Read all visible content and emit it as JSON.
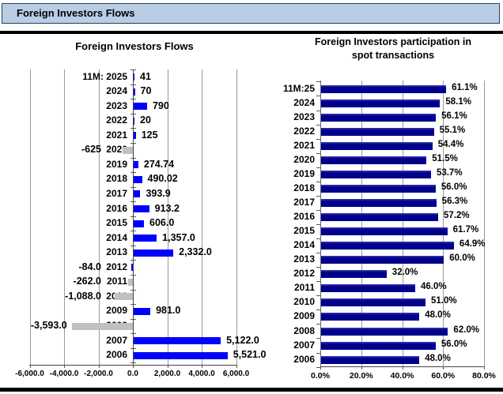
{
  "page": {
    "header_title": "Foreign Investors Flows"
  },
  "colors": {
    "header_bg": "#B9CDE5",
    "header_border": "#243F60",
    "flows_positive_bar": "#0000FF",
    "flows_negative_bar": "#C0C0C0",
    "participation_bar": "#00008B",
    "gridline": "#9A9A9A",
    "axis": "#444444"
  },
  "chart_data": [
    {
      "type": "bar",
      "orientation": "horizontal",
      "title": "Foreign Investors Flows",
      "categories": [
        "11M: 2025",
        "2024",
        "2023",
        "2022",
        "2021",
        "2020",
        "2019",
        "2018",
        "2017",
        "2016",
        "2015",
        "2014",
        "2013",
        "2012",
        "2011",
        "2010",
        "2009",
        "2008",
        "2007",
        "2006"
      ],
      "values": [
        41,
        70,
        790,
        20,
        125,
        -625,
        274.74,
        490.02,
        393.9,
        913.2,
        606.0,
        1357.0,
        2332.0,
        -84.0,
        -262.0,
        -1088.0,
        981.0,
        -3593.0,
        5122.0,
        5521.0
      ],
      "value_labels": [
        "41",
        "70",
        "790",
        "20",
        "125",
        "-625",
        "274.74",
        "490.02",
        "393.9",
        "913.2",
        "606.0",
        "1,357.0",
        "2,332.0",
        "-84.0",
        "-262.0",
        "-1,088.0",
        "981.0",
        "-3,593.0",
        "5,122.0",
        "5,521.0"
      ],
      "xlim": [
        -6000,
        6000
      ],
      "x_ticks": [
        "-6,000.0",
        "-4,000.0",
        "-2,000.0",
        "0.0",
        "2,000.0",
        "4,000.0",
        "6,000.0"
      ],
      "grid": true,
      "legend": "none",
      "positive_color": "#0000FF",
      "negative_color": "#C0C0C0",
      "color_overrides": {
        "2012": "#0000FF"
      }
    },
    {
      "type": "bar",
      "orientation": "horizontal",
      "title": "Foreign Investors participation in spot transactions",
      "title_lines": [
        "Foreign Investors participation in",
        "spot transactions"
      ],
      "categories": [
        "11M:25",
        "2024",
        "2023",
        "2022",
        "2021",
        "2020",
        "2019",
        "2018",
        "2017",
        "2016",
        "2015",
        "2014",
        "2013",
        "2012",
        "2011",
        "2010",
        "2009",
        "2008",
        "2007",
        "2006"
      ],
      "values": [
        61.1,
        58.1,
        56.1,
        55.1,
        54.4,
        51.5,
        53.7,
        56.0,
        56.3,
        57.2,
        61.7,
        64.9,
        60.0,
        32.0,
        46.0,
        51.0,
        48.0,
        62.0,
        56.0,
        48.0
      ],
      "value_labels": [
        "61.1%",
        "58.1%",
        "56.1%",
        "55.1%",
        "54.4%",
        "51.5%",
        "53.7%",
        "56.0%",
        "56.3%",
        "57.2%",
        "61.7%",
        "64.9%",
        "60.0%",
        "32.0%",
        "46.0%",
        "51.0%",
        "48.0%",
        "62.0%",
        "56.0%",
        "48.0%"
      ],
      "xlim": [
        0,
        80
      ],
      "x_ticks": [
        "0.0%",
        "20.0%",
        "40.0%",
        "60.0%",
        "80.0%"
      ],
      "grid": true,
      "legend": "none",
      "bar_color": "#00008B"
    }
  ]
}
